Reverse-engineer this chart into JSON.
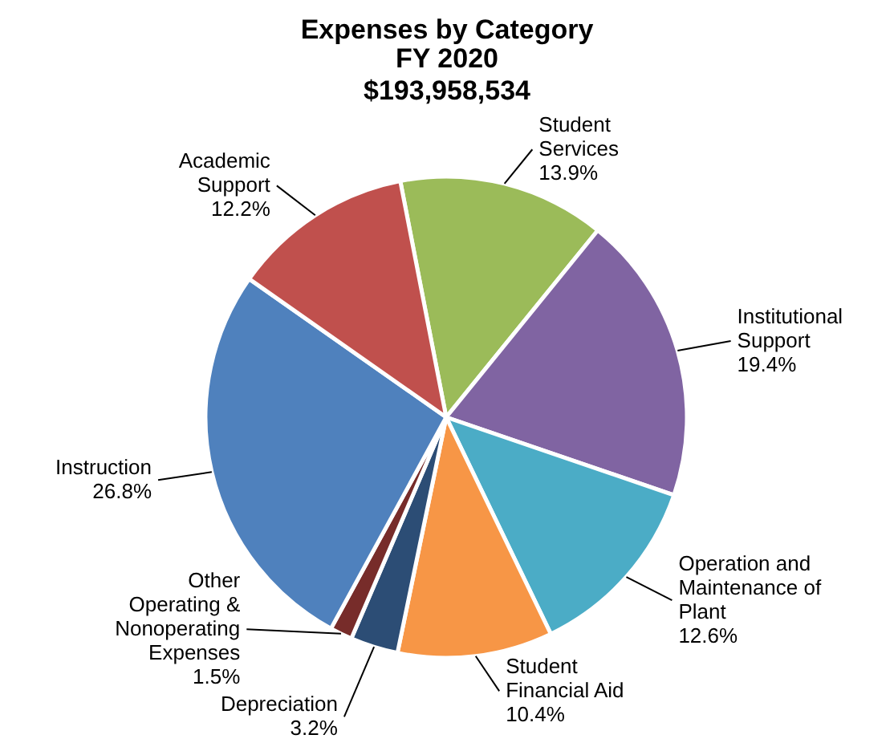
{
  "chart_data": {
    "type": "pie",
    "title": "Expenses by Category",
    "subtitle": "FY 2020 $193,958,534",
    "categories": [
      "Student Services",
      "Institutional Support",
      "Operation and Maintenance of Plant",
      "Student Financial Aid",
      "Depreciation",
      "Other Operating & Nonoperating Expenses",
      "Instruction",
      "Academic Support"
    ],
    "values": [
      13.9,
      19.4,
      12.6,
      10.4,
      3.2,
      1.5,
      26.8,
      12.2
    ],
    "value_labels": [
      "13.9%",
      "19.4%",
      "12.6%",
      "10.4%",
      "3.2%",
      "1.5%",
      "26.8%",
      "12.2%"
    ],
    "colors": [
      "#9bbb59",
      "#8064a2",
      "#4bacc6",
      "#f79646",
      "#2c4d75",
      "#772c2a",
      "#4f81bd",
      "#c0504d"
    ]
  }
}
